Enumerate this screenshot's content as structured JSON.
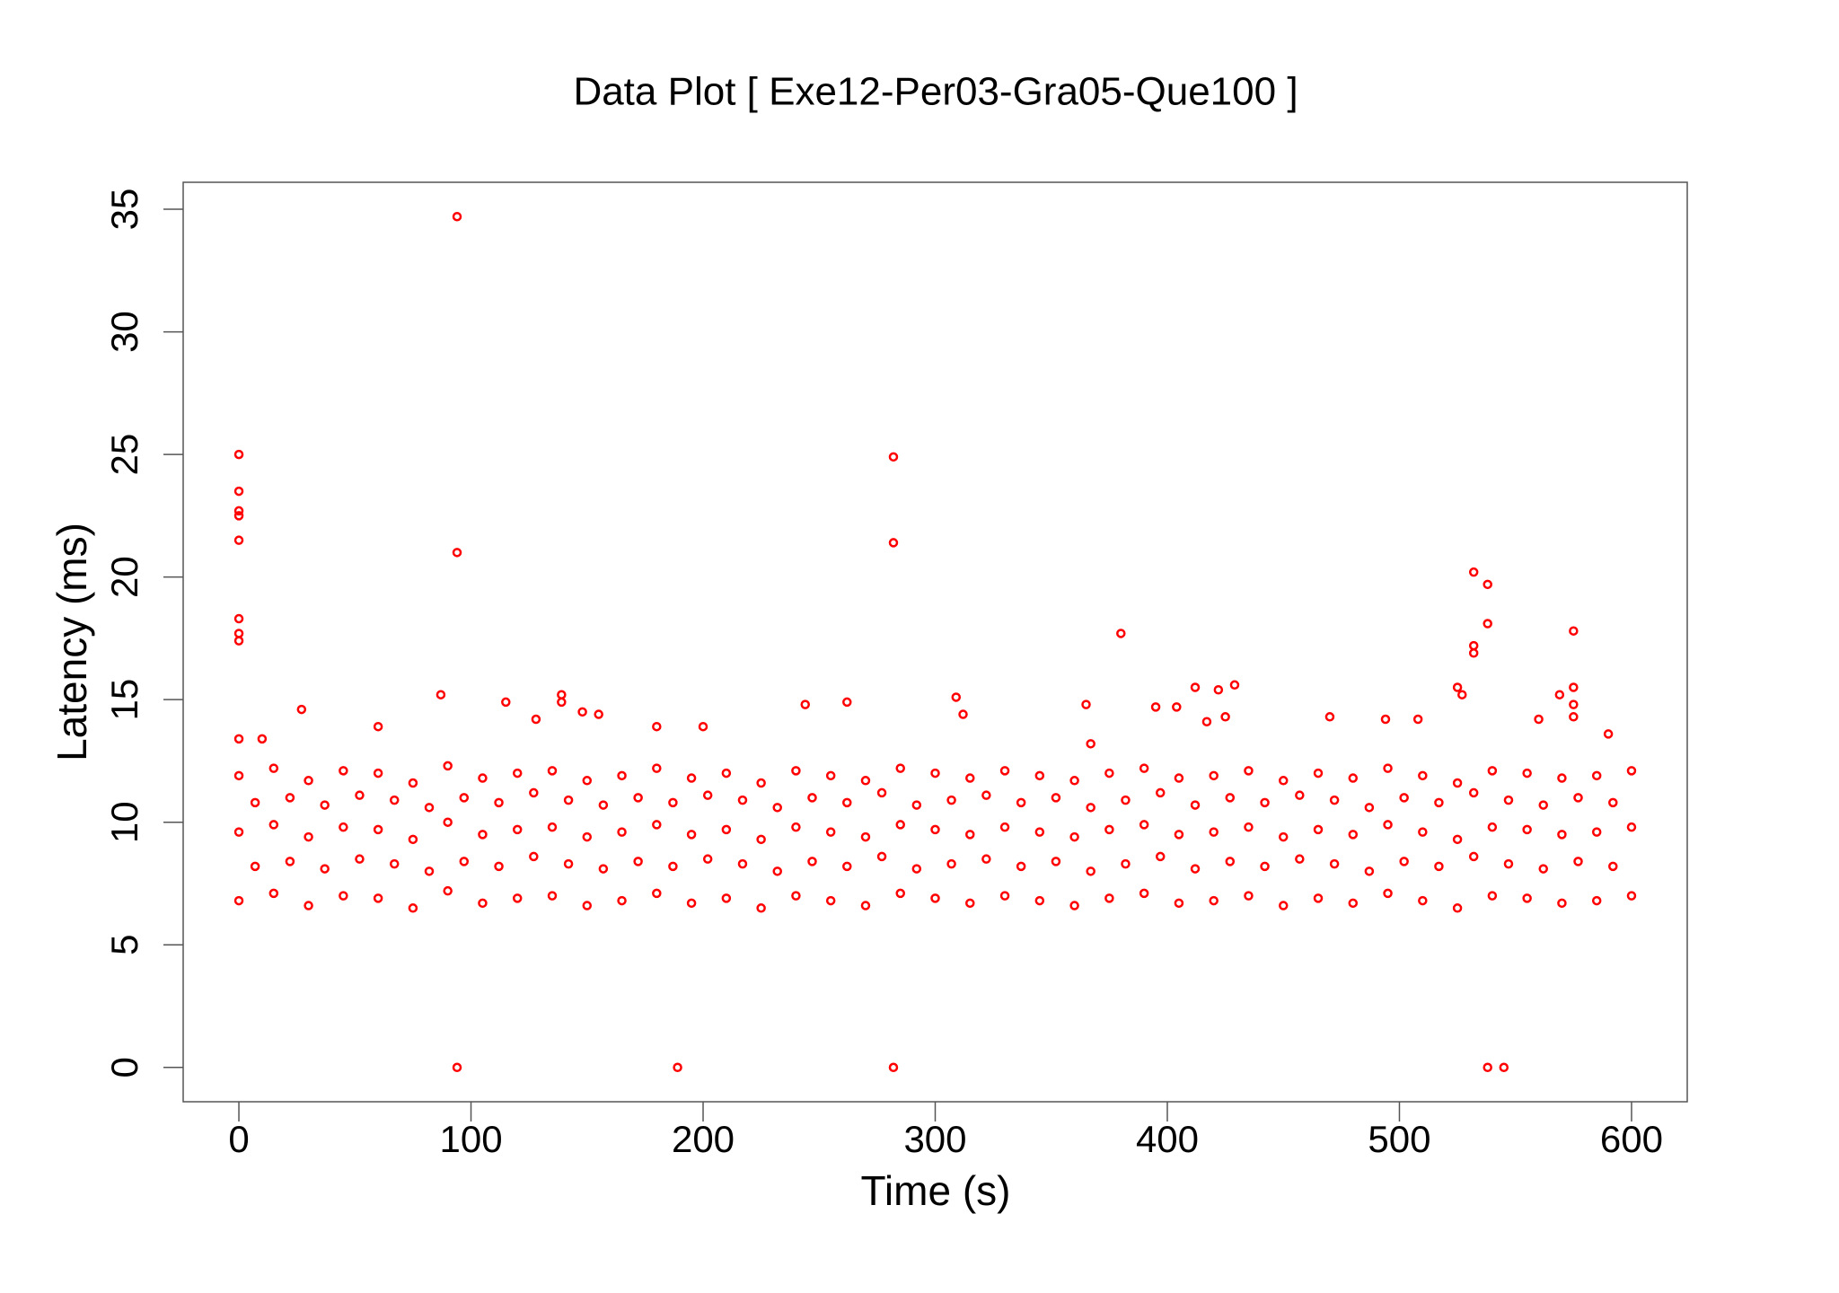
{
  "chart_data": {
    "type": "scatter",
    "title": "Data Plot [ Exe12-Per03-Gra05-Que100 ]",
    "x_label": "Time (s)",
    "y_label": "Latency (ms)",
    "color": "#ff0000",
    "xlim": [
      -24,
      624
    ],
    "ylim": [
      -1.4,
      36.1
    ],
    "xticks": [
      0,
      100,
      200,
      300,
      400,
      500,
      600
    ],
    "yticks": [
      0,
      5,
      10,
      15,
      20,
      25,
      30,
      35
    ],
    "x": [
      0,
      15,
      30,
      45,
      60,
      75,
      90,
      105,
      120,
      135,
      150,
      165,
      180,
      195,
      210,
      225,
      240,
      255,
      270,
      285,
      300,
      315,
      330,
      345,
      360,
      375,
      390,
      405,
      420,
      435,
      450,
      465,
      480,
      495,
      510,
      525,
      540,
      555,
      570,
      585,
      600,
      7,
      22,
      37,
      52,
      67,
      82,
      97,
      112,
      127,
      142,
      157,
      172,
      187,
      202,
      217,
      232,
      247,
      262,
      277,
      292,
      307,
      322,
      337,
      352,
      367,
      382,
      397,
      412,
      427,
      442,
      457,
      472,
      487,
      502,
      517,
      532,
      547,
      562,
      577,
      592,
      0,
      15,
      30,
      45,
      60,
      75,
      90,
      105,
      120,
      135,
      150,
      165,
      180,
      195,
      210,
      225,
      240,
      255,
      270,
      285,
      300,
      315,
      330,
      345,
      360,
      375,
      390,
      405,
      420,
      435,
      450,
      465,
      480,
      495,
      510,
      525,
      540,
      555,
      570,
      585,
      600,
      7,
      22,
      37,
      52,
      67,
      82,
      97,
      112,
      127,
      142,
      157,
      172,
      187,
      202,
      217,
      232,
      247,
      262,
      277,
      292,
      307,
      322,
      337,
      352,
      367,
      382,
      397,
      412,
      427,
      442,
      457,
      472,
      487,
      502,
      517,
      532,
      547,
      562,
      577,
      592,
      0,
      15,
      30,
      45,
      60,
      75,
      90,
      105,
      120,
      135,
      150,
      165,
      180,
      195,
      210,
      225,
      240,
      255,
      270,
      285,
      300,
      315,
      330,
      345,
      360,
      375,
      390,
      405,
      420,
      435,
      450,
      465,
      480,
      495,
      510,
      525,
      540,
      555,
      570,
      585,
      600,
      0,
      0,
      0,
      0,
      0,
      0,
      0,
      0,
      0,
      94,
      94,
      94,
      189,
      282,
      282,
      282,
      538,
      545,
      532,
      538,
      538,
      532,
      532,
      380,
      575,
      575,
      575,
      575,
      525,
      527,
      412,
      429,
      422,
      87,
      139,
      139,
      115,
      244,
      262,
      309,
      312,
      365,
      395,
      27,
      148,
      155,
      128,
      470,
      494,
      508,
      569,
      560,
      404,
      417,
      425,
      60,
      10,
      200,
      180,
      367,
      590
    ],
    "y": [
      6.8,
      7.1,
      6.6,
      7.0,
      6.9,
      6.5,
      7.2,
      6.7,
      6.9,
      7.0,
      6.6,
      6.8,
      7.1,
      6.7,
      6.9,
      6.5,
      7.0,
      6.8,
      6.6,
      7.1,
      6.9,
      6.7,
      7.0,
      6.8,
      6.6,
      6.9,
      7.1,
      6.7,
      6.8,
      7.0,
      6.6,
      6.9,
      6.7,
      7.1,
      6.8,
      6.5,
      7.0,
      6.9,
      6.7,
      6.8,
      7.0,
      8.2,
      8.4,
      8.1,
      8.5,
      8.3,
      8.0,
      8.4,
      8.2,
      8.6,
      8.3,
      8.1,
      8.4,
      8.2,
      8.5,
      8.3,
      8.0,
      8.4,
      8.2,
      8.6,
      8.1,
      8.3,
      8.5,
      8.2,
      8.4,
      8.0,
      8.3,
      8.6,
      8.1,
      8.4,
      8.2,
      8.5,
      8.3,
      8.0,
      8.4,
      8.2,
      8.6,
      8.3,
      8.1,
      8.4,
      8.2,
      9.6,
      9.9,
      9.4,
      9.8,
      9.7,
      9.3,
      10.0,
      9.5,
      9.7,
      9.8,
      9.4,
      9.6,
      9.9,
      9.5,
      9.7,
      9.3,
      9.8,
      9.6,
      9.4,
      9.9,
      9.7,
      9.5,
      9.8,
      9.6,
      9.4,
      9.7,
      9.9,
      9.5,
      9.6,
      9.8,
      9.4,
      9.7,
      9.5,
      9.9,
      9.6,
      9.3,
      9.8,
      9.7,
      9.5,
      9.6,
      9.8,
      10.8,
      11.0,
      10.7,
      11.1,
      10.9,
      10.6,
      11.0,
      10.8,
      11.2,
      10.9,
      10.7,
      11.0,
      10.8,
      11.1,
      10.9,
      10.6,
      11.0,
      10.8,
      11.2,
      10.7,
      10.9,
      11.1,
      10.8,
      11.0,
      10.6,
      10.9,
      11.2,
      10.7,
      11.0,
      10.8,
      11.1,
      10.9,
      10.6,
      11.0,
      10.8,
      11.2,
      10.9,
      10.7,
      11.0,
      10.8,
      11.9,
      12.2,
      11.7,
      12.1,
      12.0,
      11.6,
      12.3,
      11.8,
      12.0,
      12.1,
      11.7,
      11.9,
      12.2,
      11.8,
      12.0,
      11.6,
      12.1,
      11.9,
      11.7,
      12.2,
      12.0,
      11.8,
      12.1,
      11.9,
      11.7,
      12.0,
      12.2,
      11.8,
      11.9,
      12.1,
      11.7,
      12.0,
      11.8,
      12.2,
      11.9,
      11.6,
      12.1,
      12.0,
      11.8,
      11.9,
      12.1,
      25,
      23.5,
      22.7,
      22.5,
      21.5,
      18.3,
      17.7,
      17.4,
      13.4,
      34.7,
      21,
      0,
      0,
      24.9,
      21.4,
      0,
      0,
      0,
      20.2,
      19.7,
      18.1,
      17.2,
      16.9,
      17.7,
      17.8,
      15.5,
      14.8,
      14.3,
      15.5,
      15.2,
      15.5,
      15.6,
      15.4,
      15.2,
      15.2,
      14.9,
      14.9,
      14.8,
      14.9,
      15.1,
      14.4,
      14.8,
      14.7,
      14.6,
      14.5,
      14.4,
      14.2,
      14.3,
      14.2,
      14.2,
      15.2,
      14.2,
      14.7,
      14.1,
      14.3,
      13.9,
      13.4,
      13.9,
      13.9,
      13.2,
      13.6
    ]
  }
}
